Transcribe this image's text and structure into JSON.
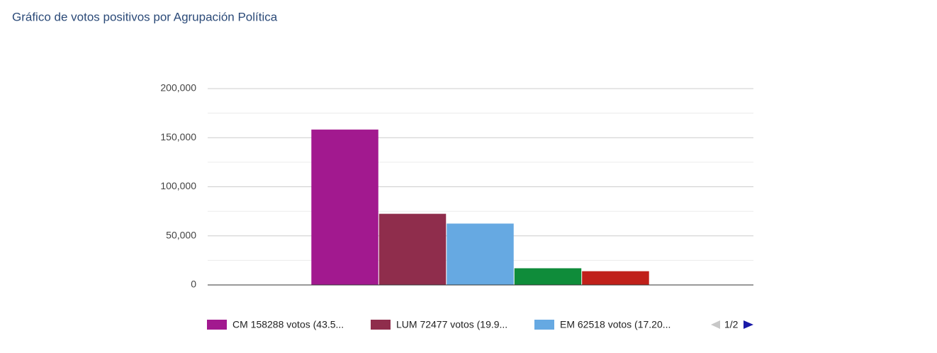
{
  "chart_data": {
    "type": "bar",
    "title": "Gráfico de votos positivos por Agrupación Política",
    "categories": [
      null
    ],
    "series": [
      {
        "name": "CM 158288 votos (43.5...",
        "color": "#a2198f",
        "values": [
          158288
        ]
      },
      {
        "name": "LUM 72477 votos (19.9...",
        "color": "#8f2d4c",
        "values": [
          72477
        ]
      },
      {
        "name": "EM 62518 votos (17.20...",
        "color": "#66a9e2",
        "values": [
          62518
        ]
      },
      {
        "color": "#0f8c3a",
        "values": [
          17000
        ]
      },
      {
        "color": "#c0201a",
        "values": [
          14000
        ]
      }
    ],
    "ylim": [
      0,
      200000
    ],
    "yticks": [
      {
        "value": 0,
        "label": "0"
      },
      {
        "value": 50000,
        "label": "50,000"
      },
      {
        "value": 100000,
        "label": "100,000"
      },
      {
        "value": 150000,
        "label": "150,000"
      },
      {
        "value": 200000,
        "label": "200,000"
      }
    ],
    "grid": true,
    "legend": "bottom",
    "legend_page": "1/2"
  }
}
